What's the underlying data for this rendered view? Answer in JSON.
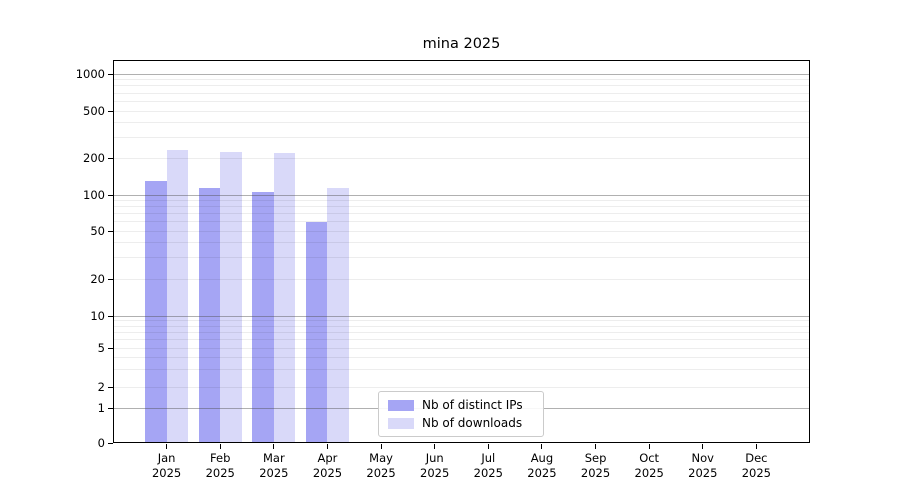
{
  "chart_data": {
    "type": "bar",
    "title": "mina 2025",
    "categories": [
      "Jan 2025",
      "Feb 2025",
      "Mar 2025",
      "Apr 2025",
      "May 2025",
      "Jun 2025",
      "Jul 2025",
      "Aug 2025",
      "Sep 2025",
      "Oct 2025",
      "Nov 2025",
      "Dec 2025"
    ],
    "series": [
      {
        "name": "Nb of distinct IPs",
        "color": "#a5a5f4",
        "values": [
          130,
          115,
          105,
          60,
          null,
          null,
          null,
          null,
          null,
          null,
          null,
          null
        ]
      },
      {
        "name": "Nb of downloads",
        "color": "#d9d9f9",
        "values": [
          235,
          225,
          220,
          115,
          null,
          null,
          null,
          null,
          null,
          null,
          null,
          null
        ]
      }
    ],
    "yscale": "symlog",
    "yticks": [
      0,
      1,
      2,
      5,
      10,
      20,
      50,
      100,
      200,
      500,
      1000
    ],
    "ylim": [
      0,
      1300
    ],
    "grid": "horizontal major at powers of 10, faint minor lines, drawn above bars",
    "legend_position": "inside lower-center"
  }
}
